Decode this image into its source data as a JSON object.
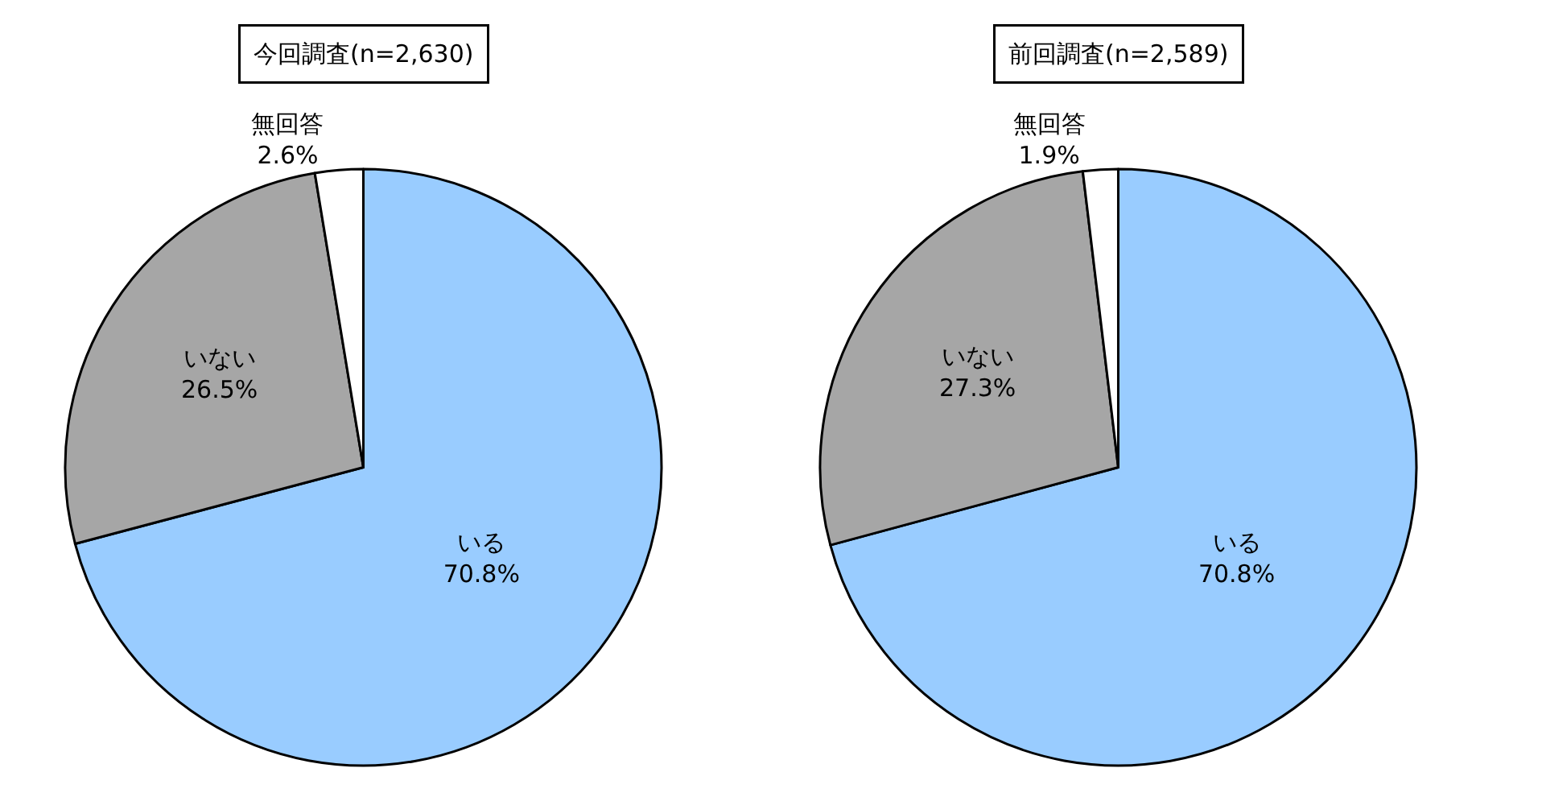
{
  "chart_data": [
    {
      "type": "pie",
      "title": "今回調査(n=2,630)",
      "categories": [
        "いる",
        "いない",
        "無回答"
      ],
      "values": [
        70.8,
        26.5,
        2.6
      ],
      "value_labels": [
        "70.8%",
        "26.5%",
        "2.6%"
      ],
      "colors": [
        "#99ccff",
        "#a6a6a6",
        "#ffffff"
      ],
      "legend": false
    },
    {
      "type": "pie",
      "title": "前回調査(n=2,589)",
      "categories": [
        "いる",
        "いない",
        "無回答"
      ],
      "values": [
        70.8,
        27.3,
        1.9
      ],
      "value_labels": [
        "70.8%",
        "27.3%",
        "1.9%"
      ],
      "colors": [
        "#99ccff",
        "#a6a6a6",
        "#ffffff"
      ],
      "legend": false
    }
  ]
}
